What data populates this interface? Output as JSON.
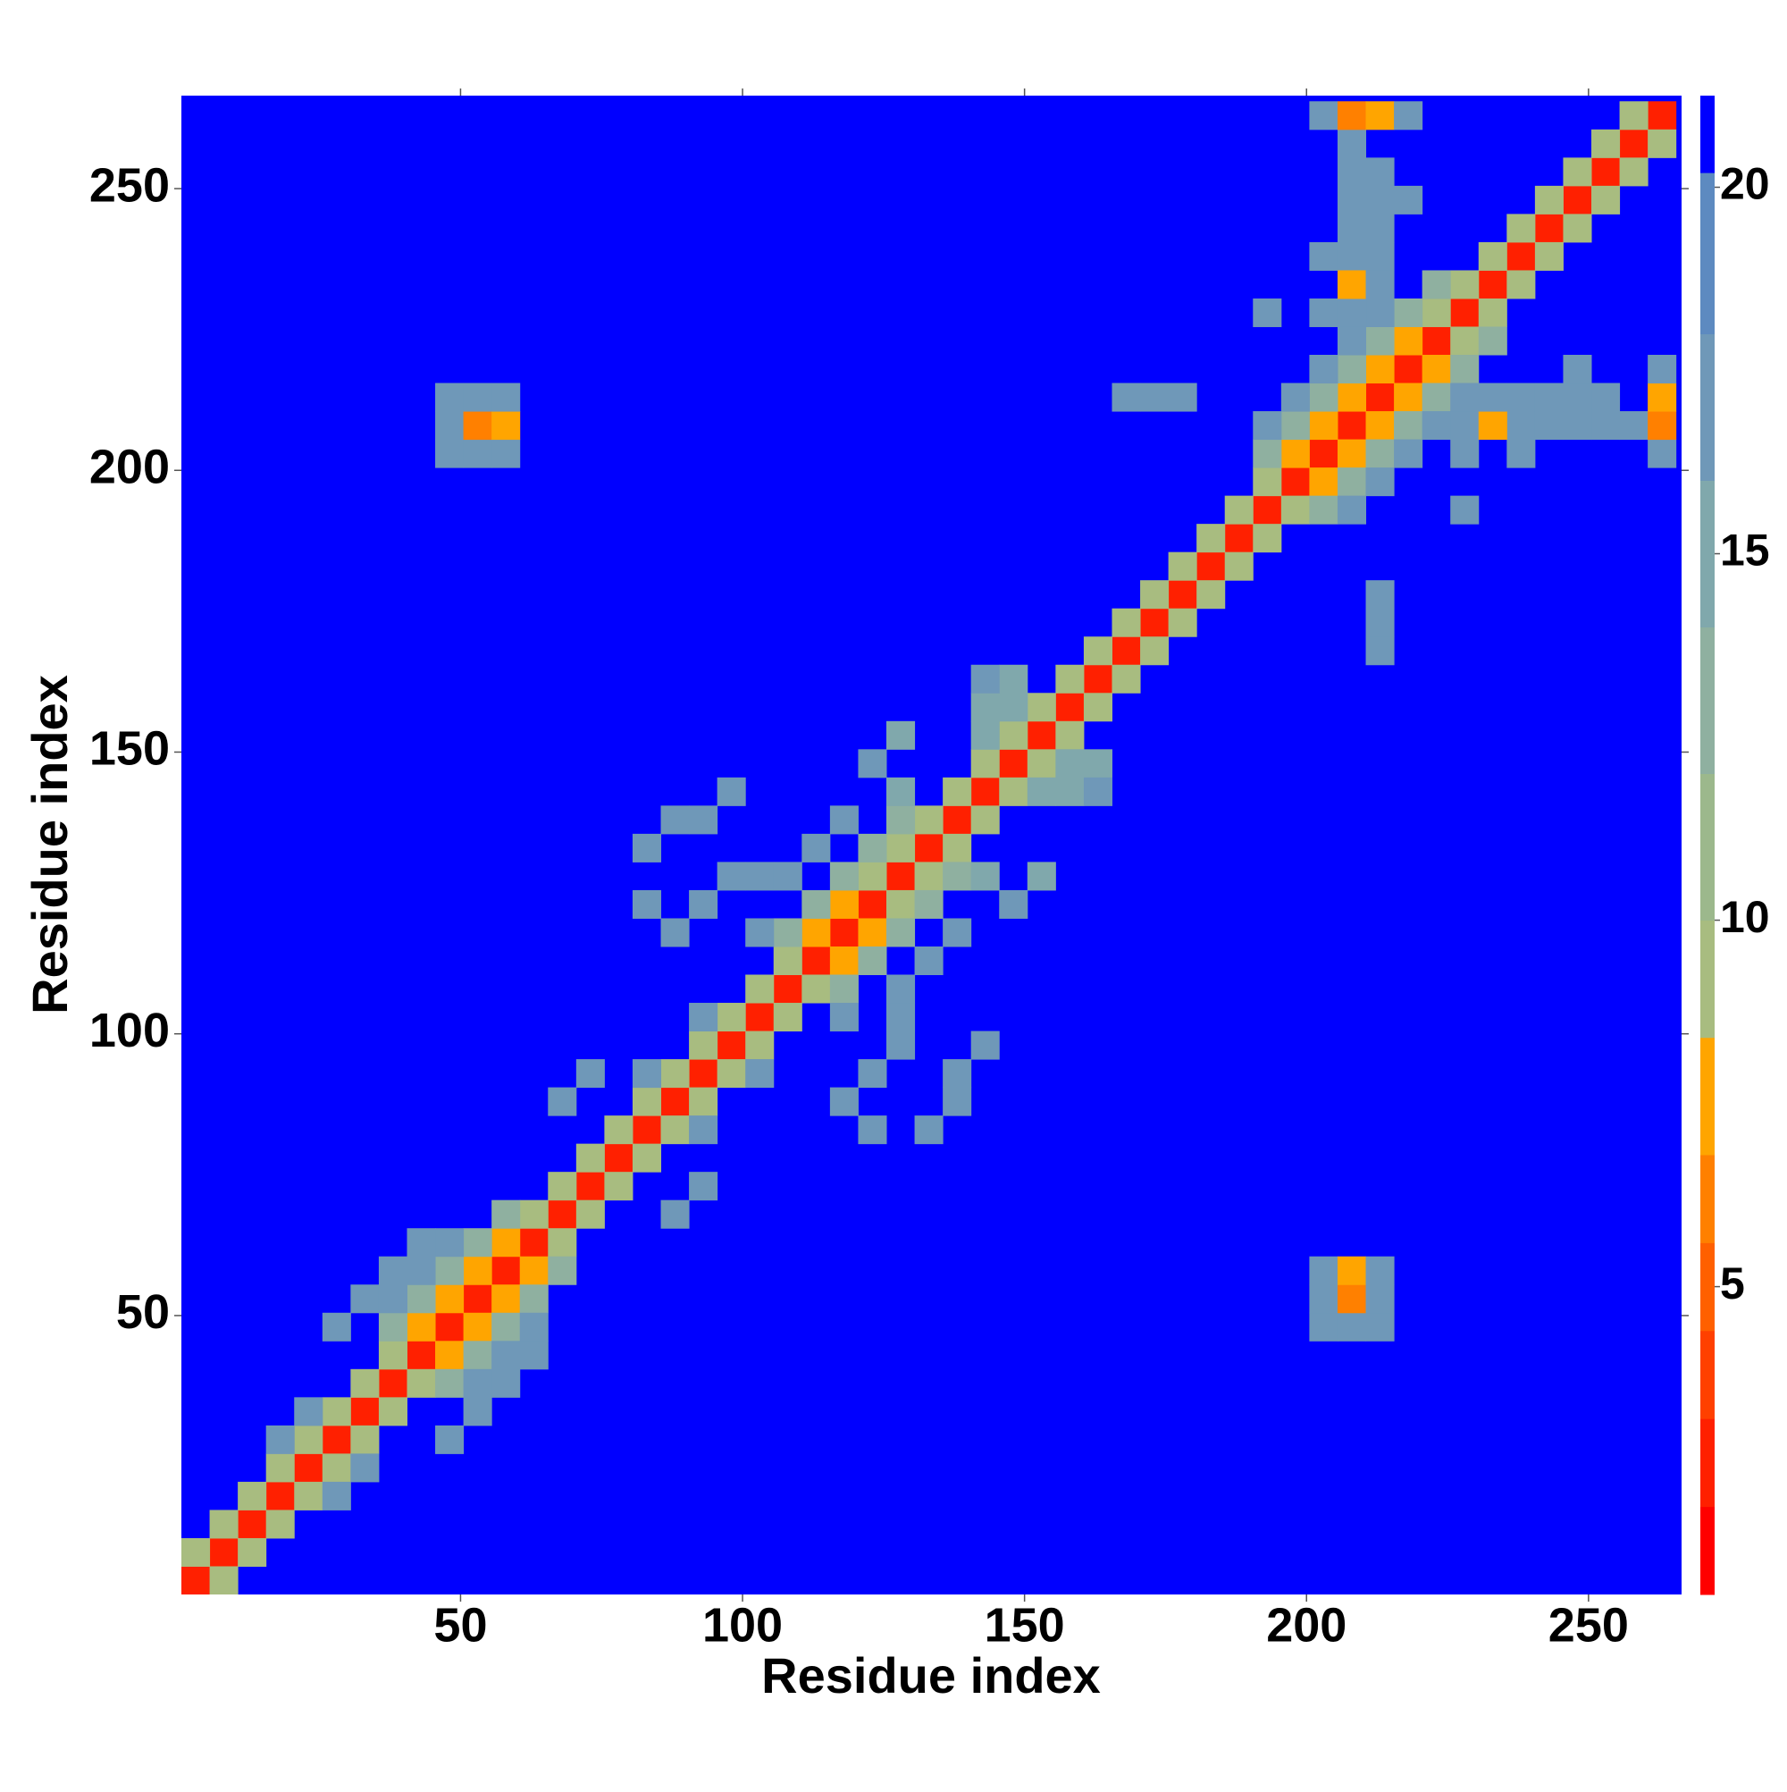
{
  "chart_data": {
    "type": "heatmap",
    "xlabel": "Residue index",
    "ylabel": "Residue index",
    "xlim": [
      0.5,
      266.5
    ],
    "ylim": [
      0.5,
      266.5
    ],
    "xticks": [
      50,
      100,
      150,
      200,
      250
    ],
    "yticks": [
      50,
      100,
      150,
      200,
      250
    ],
    "symmetric": true,
    "colorbar": {
      "levels": [
        0.8,
        2,
        3.2,
        4.4,
        5.6,
        6.8,
        8.4,
        10,
        12,
        14,
        16,
        18,
        20.2,
        21.25
      ],
      "colors": [
        "#ff0000",
        "#ff2000",
        "#ff4000",
        "#ff6000",
        "#ff8000",
        "#ffa500",
        "#a8bc80",
        "#9cb88c",
        "#8fb0a0",
        "#80a8ac",
        "#6f98b8",
        "#5d8ac0",
        "#0000ff"
      ],
      "ticks": [
        5,
        10,
        15,
        20
      ]
    },
    "cells": [
      [
        3,
        3,
        3
      ],
      [
        8,
        8,
        3
      ],
      [
        13,
        13,
        3
      ],
      [
        18,
        18,
        3
      ],
      [
        23,
        23,
        3
      ],
      [
        28,
        28,
        3
      ],
      [
        33,
        33,
        3
      ],
      [
        38,
        38,
        3
      ],
      [
        43,
        43,
        3
      ],
      [
        48,
        48,
        3
      ],
      [
        53,
        53,
        3
      ],
      [
        58,
        58,
        3
      ],
      [
        63,
        63,
        3
      ],
      [
        68,
        68,
        3
      ],
      [
        73,
        73,
        3
      ],
      [
        78,
        78,
        3
      ],
      [
        83,
        83,
        3
      ],
      [
        88,
        88,
        3
      ],
      [
        93,
        93,
        3
      ],
      [
        98,
        98,
        3
      ],
      [
        103,
        103,
        3
      ],
      [
        108,
        108,
        3
      ],
      [
        113,
        113,
        3
      ],
      [
        118,
        118,
        3
      ],
      [
        123,
        123,
        3
      ],
      [
        128,
        128,
        3
      ],
      [
        133,
        133,
        3
      ],
      [
        138,
        138,
        3
      ],
      [
        143,
        143,
        3
      ],
      [
        148,
        148,
        3
      ],
      [
        153,
        153,
        3
      ],
      [
        158,
        158,
        3
      ],
      [
        163,
        163,
        3
      ],
      [
        168,
        168,
        3
      ],
      [
        173,
        173,
        3
      ],
      [
        178,
        178,
        3
      ],
      [
        183,
        183,
        3
      ],
      [
        188,
        188,
        3
      ],
      [
        193,
        193,
        3
      ],
      [
        198,
        198,
        3
      ],
      [
        203,
        203,
        3
      ],
      [
        208,
        208,
        3
      ],
      [
        213,
        213,
        3
      ],
      [
        218,
        218,
        3
      ],
      [
        223,
        223,
        3
      ],
      [
        228,
        228,
        3
      ],
      [
        233,
        233,
        3
      ],
      [
        238,
        238,
        3
      ],
      [
        243,
        243,
        3
      ],
      [
        248,
        248,
        3
      ],
      [
        253,
        253,
        3
      ],
      [
        258,
        258,
        3
      ],
      [
        263,
        263,
        3
      ],
      [
        3,
        8,
        9
      ],
      [
        8,
        13,
        9
      ],
      [
        13,
        18,
        9
      ],
      [
        18,
        23,
        9
      ],
      [
        23,
        28,
        9
      ],
      [
        28,
        33,
        9
      ],
      [
        33,
        38,
        9
      ],
      [
        38,
        43,
        9
      ],
      [
        43,
        48,
        7
      ],
      [
        48,
        53,
        7
      ],
      [
        53,
        58,
        7
      ],
      [
        58,
        63,
        7
      ],
      [
        63,
        68,
        9
      ],
      [
        68,
        73,
        9
      ],
      [
        73,
        78,
        9
      ],
      [
        78,
        83,
        9
      ],
      [
        83,
        88,
        9
      ],
      [
        88,
        93,
        9
      ],
      [
        93,
        98,
        9
      ],
      [
        98,
        103,
        9
      ],
      [
        103,
        108,
        9
      ],
      [
        108,
        113,
        9
      ],
      [
        113,
        118,
        7
      ],
      [
        118,
        123,
        7
      ],
      [
        123,
        128,
        9
      ],
      [
        128,
        133,
        9
      ],
      [
        133,
        138,
        9
      ],
      [
        138,
        143,
        9
      ],
      [
        143,
        148,
        9
      ],
      [
        148,
        153,
        9
      ],
      [
        153,
        158,
        9
      ],
      [
        158,
        163,
        9
      ],
      [
        163,
        168,
        9
      ],
      [
        168,
        173,
        9
      ],
      [
        173,
        178,
        9
      ],
      [
        178,
        183,
        9
      ],
      [
        183,
        188,
        9
      ],
      [
        188,
        193,
        9
      ],
      [
        193,
        198,
        9
      ],
      [
        198,
        203,
        7
      ],
      [
        203,
        208,
        7
      ],
      [
        208,
        213,
        7
      ],
      [
        213,
        218,
        7
      ],
      [
        218,
        223,
        7
      ],
      [
        223,
        228,
        9
      ],
      [
        228,
        233,
        9
      ],
      [
        233,
        238,
        9
      ],
      [
        238,
        243,
        9
      ],
      [
        243,
        248,
        9
      ],
      [
        248,
        253,
        9
      ],
      [
        253,
        258,
        9
      ],
      [
        258,
        263,
        9
      ],
      [
        38,
        48,
        13
      ],
      [
        43,
        53,
        13
      ],
      [
        48,
        58,
        13
      ],
      [
        53,
        63,
        13
      ],
      [
        58,
        68,
        13
      ],
      [
        108,
        118,
        13
      ],
      [
        113,
        123,
        13
      ],
      [
        118,
        128,
        13
      ],
      [
        123,
        133,
        13
      ],
      [
        128,
        138,
        13
      ],
      [
        193,
        203,
        13
      ],
      [
        198,
        208,
        13
      ],
      [
        203,
        213,
        13
      ],
      [
        208,
        218,
        13
      ],
      [
        213,
        223,
        13
      ],
      [
        218,
        228,
        13
      ],
      [
        223,
        233,
        13
      ],
      [
        83,
        93,
        16
      ],
      [
        143,
        153,
        15
      ],
      [
        148,
        158,
        15
      ],
      [
        93,
        103,
        16
      ],
      [
        43,
        58,
        17
      ],
      [
        48,
        63,
        17
      ],
      [
        198,
        213,
        17
      ],
      [
        203,
        218,
        17
      ],
      [
        208,
        223,
        17
      ],
      [
        193,
        208,
        17
      ],
      [
        213,
        228,
        16
      ],
      [
        48,
        203,
        17
      ],
      [
        48,
        208,
        17
      ],
      [
        48,
        213,
        17
      ],
      [
        53,
        203,
        17
      ],
      [
        53,
        208,
        6
      ],
      [
        53,
        213,
        17
      ],
      [
        58,
        203,
        17
      ],
      [
        58,
        208,
        7
      ],
      [
        58,
        213,
        17
      ],
      [
        203,
        238,
        17
      ],
      [
        208,
        238,
        17
      ],
      [
        213,
        238,
        17
      ],
      [
        208,
        243,
        17
      ],
      [
        213,
        243,
        17
      ],
      [
        208,
        248,
        17
      ],
      [
        213,
        248,
        17
      ],
      [
        218,
        248,
        17
      ],
      [
        208,
        253,
        17
      ],
      [
        213,
        253,
        17
      ],
      [
        208,
        258,
        17
      ],
      [
        203,
        263,
        17
      ],
      [
        208,
        263,
        6
      ],
      [
        213,
        263,
        7
      ],
      [
        218,
        263,
        17
      ],
      [
        203,
        228,
        17
      ],
      [
        208,
        228,
        17
      ],
      [
        208,
        233,
        8
      ],
      [
        213,
        233,
        17
      ],
      [
        193,
        228,
        17
      ],
      [
        83,
        123,
        17
      ],
      [
        83,
        133,
        17
      ],
      [
        88,
        118,
        17
      ],
      [
        88,
        138,
        17
      ],
      [
        93,
        138,
        17
      ],
      [
        98,
        128,
        17
      ],
      [
        98,
        143,
        17
      ],
      [
        93,
        123,
        17
      ],
      [
        103,
        128,
        16
      ],
      [
        103,
        118,
        16
      ],
      [
        123,
        148,
        16
      ],
      [
        128,
        153,
        15
      ],
      [
        128,
        143,
        15
      ],
      [
        143,
        158,
        15
      ],
      [
        148,
        163,
        15
      ],
      [
        143,
        163,
        16
      ],
      [
        33,
        53,
        17
      ],
      [
        38,
        53,
        17
      ],
      [
        38,
        58,
        17
      ],
      [
        28,
        48,
        17
      ],
      [
        43,
        63,
        17
      ],
      [
        18,
        28,
        16
      ],
      [
        23,
        33,
        16
      ],
      [
        118,
        138,
        16
      ],
      [
        113,
        133,
        16
      ],
      [
        108,
        128,
        16
      ],
      [
        68,
        88,
        17
      ],
      [
        73,
        93,
        17
      ],
      [
        173,
        213,
        17
      ],
      [
        178,
        213,
        17
      ],
      [
        168,
        213,
        17
      ]
    ]
  }
}
